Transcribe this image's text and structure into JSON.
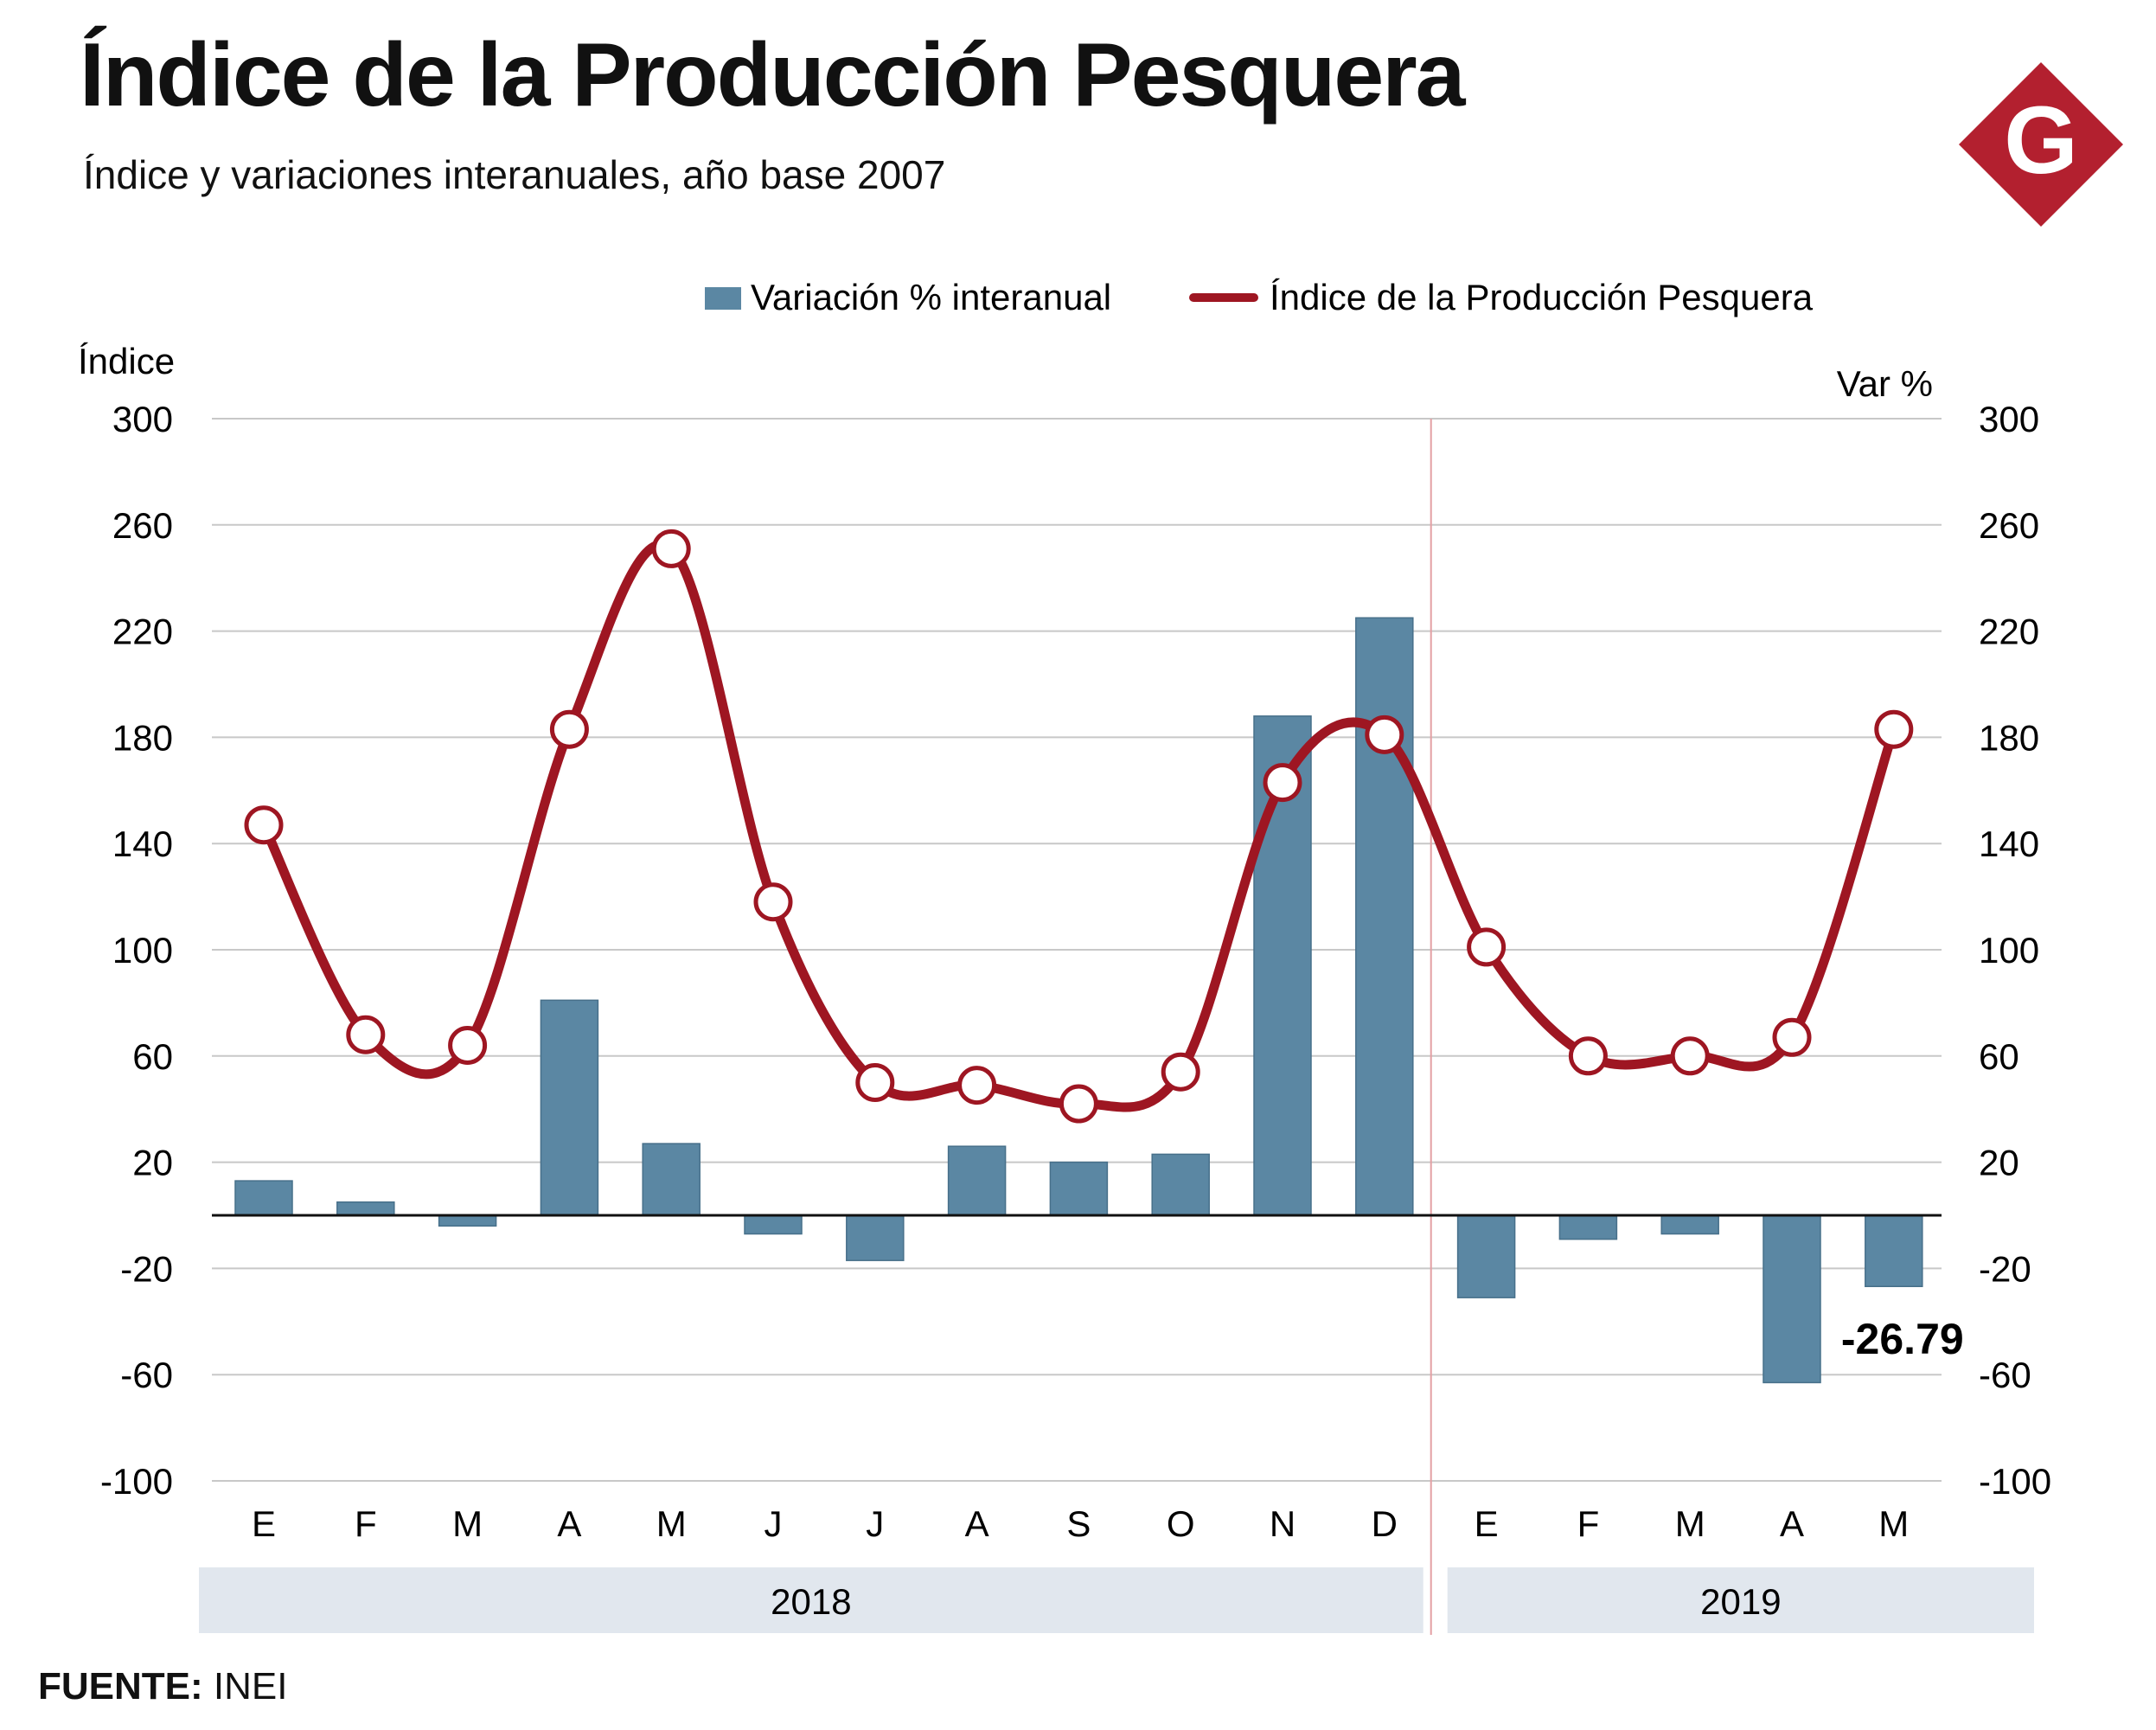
{
  "header": {
    "title": "Índice de la Producción Pesquera",
    "subtitle": "Índice y variaciones interanuales, año base 2007",
    "logo_letter": "G"
  },
  "footer": {
    "source_label": "FUENTE:",
    "source_value": "INEI"
  },
  "colors": {
    "bar": "#5b87a3",
    "line": "#9e1622",
    "logo": "#b3202f",
    "year_band": "#e1e7ee",
    "grid": "#c8c8c8"
  },
  "chart_data": {
    "type": "bar+line",
    "legend": {
      "position": "top",
      "bar_label": "Variación % interanual",
      "line_label": "Índice de la Producción Pesquera"
    },
    "left_axis": {
      "label": "Índice",
      "ticks": [
        300,
        260,
        220,
        180,
        140,
        100,
        60,
        20,
        -20,
        -60,
        -100
      ]
    },
    "right_axis": {
      "label": "Var %",
      "ticks": [
        300,
        260,
        220,
        180,
        140,
        100,
        60,
        20,
        -20,
        -60,
        -100
      ]
    },
    "ylim": [
      -100,
      300
    ],
    "grid": true,
    "categories": [
      "E",
      "F",
      "M",
      "A",
      "M",
      "J",
      "J",
      "A",
      "S",
      "O",
      "N",
      "D",
      "E",
      "F",
      "M",
      "A",
      "M"
    ],
    "years": [
      {
        "label": "2018",
        "count": 12
      },
      {
        "label": "2019",
        "count": 5
      }
    ],
    "series": [
      {
        "name": "Variación % interanual",
        "kind": "bar",
        "values": [
          13,
          5,
          -4,
          81,
          27,
          -7,
          -17,
          26,
          20,
          23,
          188,
          225,
          -31,
          -9,
          -7,
          -63,
          -26.79
        ]
      },
      {
        "name": "Índice de la Producción Pesquera",
        "kind": "line",
        "values": [
          147,
          68,
          64,
          183,
          251,
          118,
          50,
          49,
          42,
          54,
          163,
          181,
          101,
          60,
          60,
          67,
          183
        ]
      }
    ],
    "annotation": {
      "label": "-26.79",
      "category_index": 16
    }
  }
}
